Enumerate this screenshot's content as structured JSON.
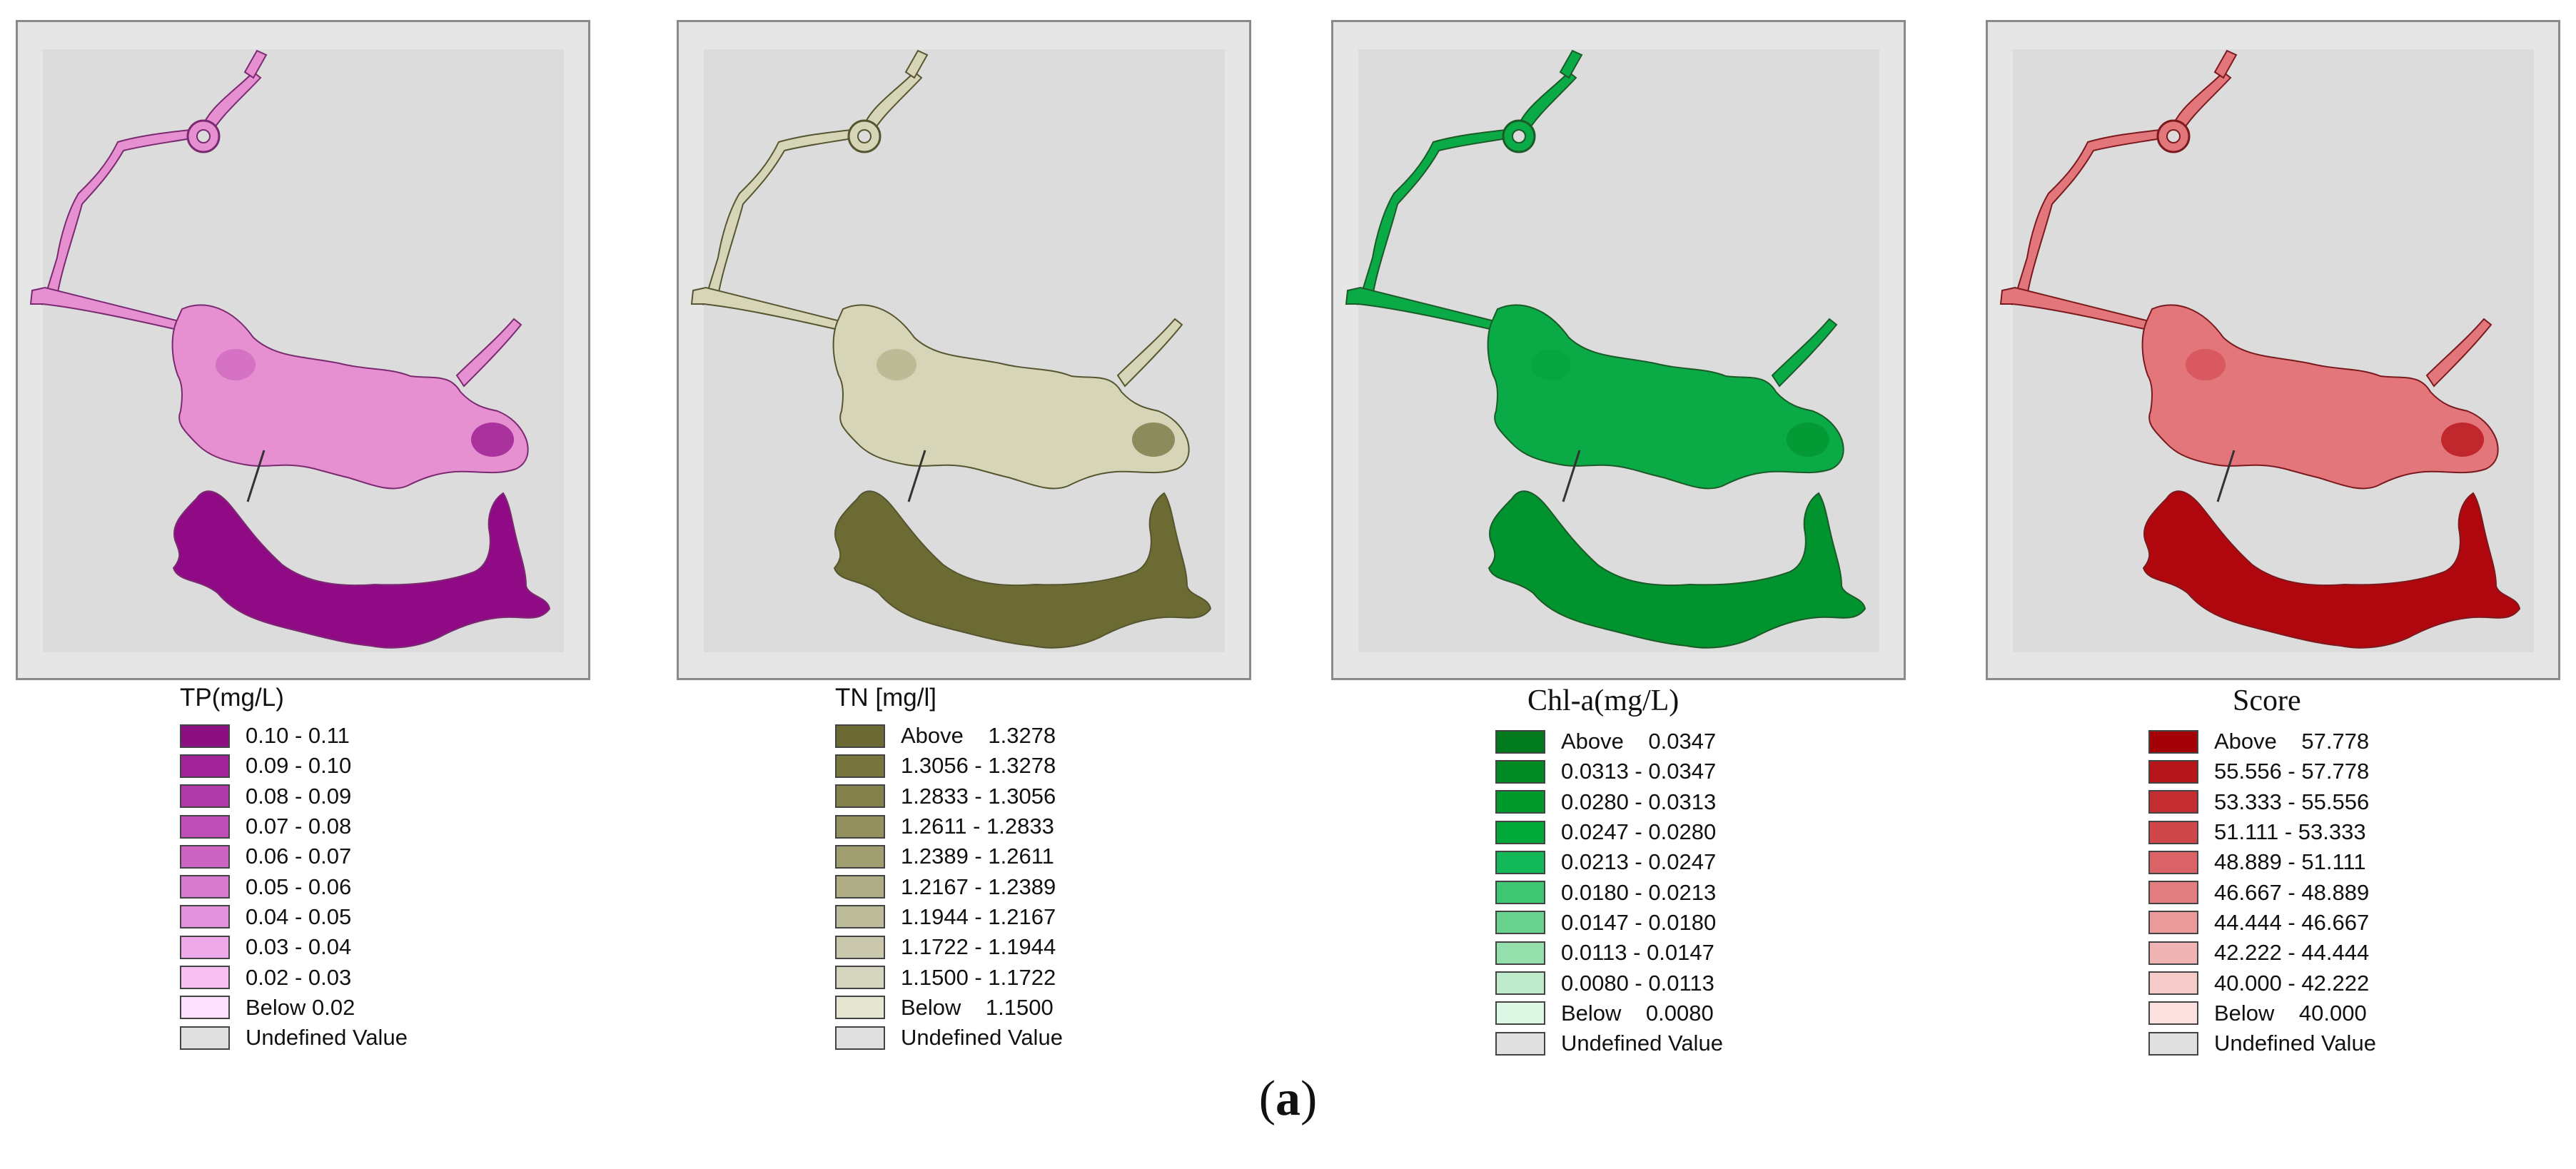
{
  "caption": {
    "open": "(",
    "letter": "a",
    "close": ")"
  },
  "undefined_color": "#e0e0e0",
  "maps": [
    {
      "title": "TP(mg/L)",
      "serif_title": false,
      "colors": {
        "base": "#e690d2",
        "high": "#900a86",
        "mid": "#c65ab8",
        "line": "#7a2a70"
      },
      "legend": [
        {
          "label": "0.10 - 0.11",
          "color": "#8b0f80"
        },
        {
          "label": "0.09 - 0.10",
          "color": "#a0239a"
        },
        {
          "label": "0.08 - 0.09",
          "color": "#b03aa8"
        },
        {
          "label": "0.07 - 0.08",
          "color": "#be4fb6"
        },
        {
          "label": "0.06 - 0.07",
          "color": "#cc65c2"
        },
        {
          "label": "0.05 - 0.06",
          "color": "#d77bcf"
        },
        {
          "label": "0.04 - 0.05",
          "color": "#e192da"
        },
        {
          "label": "0.03 - 0.04",
          "color": "#eeaae8"
        },
        {
          "label": "0.02 - 0.03",
          "color": "#f7c2f2"
        },
        {
          "label": "Below 0.02",
          "color": "#fde0fb"
        },
        {
          "label": "Undefined Value",
          "color": "#e0e0e0"
        }
      ]
    },
    {
      "title": "TN [mg/l]",
      "serif_title": false,
      "colors": {
        "base": "#d6d5b8",
        "high": "#6b6b33",
        "mid": "#a8a67a",
        "line": "#555530"
      },
      "legend": [
        {
          "label": "Above    1.3278",
          "color": "#6b6a35"
        },
        {
          "label": "1.3056 - 1.3278",
          "color": "#77763f"
        },
        {
          "label": "1.2833 - 1.3056",
          "color": "#83824d"
        },
        {
          "label": "1.2611 - 1.2833",
          "color": "#92915f"
        },
        {
          "label": "1.2389 - 1.2611",
          "color": "#a09f72"
        },
        {
          "label": "1.2167 - 1.2389",
          "color": "#aead86"
        },
        {
          "label": "1.1944 - 1.2167",
          "color": "#bcbb9a"
        },
        {
          "label": "1.1722 - 1.1944",
          "color": "#c9c8ad"
        },
        {
          "label": "1.1500 - 1.1722",
          "color": "#d6d5bf"
        },
        {
          "label": "Below    1.1500",
          "color": "#e6e5d2"
        },
        {
          "label": "Undefined Value",
          "color": "#e0e0e0"
        }
      ]
    },
    {
      "title": "Chl-a(mg/L)",
      "serif_title": true,
      "colors": {
        "base": "#0aaa46",
        "high": "#00932e",
        "mid": "#02a03a",
        "line": "#1c5a28"
      },
      "legend": [
        {
          "label": "Above    0.0347",
          "color": "#007a1c"
        },
        {
          "label": "0.0313 - 0.0347",
          "color": "#008a24"
        },
        {
          "label": "0.0280 - 0.0313",
          "color": "#00992c"
        },
        {
          "label": "0.0247 - 0.0280",
          "color": "#00a83a"
        },
        {
          "label": "0.0213 - 0.0247",
          "color": "#13b858"
        },
        {
          "label": "0.0180 - 0.0213",
          "color": "#3fc673"
        },
        {
          "label": "0.0147 - 0.0180",
          "color": "#6ad28f"
        },
        {
          "label": "0.0113 - 0.0147",
          "color": "#95dfad"
        },
        {
          "label": "0.0080 - 0.0113",
          "color": "#bdebcb"
        },
        {
          "label": "Below    0.0080",
          "color": "#ddf7e5"
        },
        {
          "label": "Undefined Value",
          "color": "#e0e0e0"
        }
      ]
    },
    {
      "title": "Score",
      "serif_title": true,
      "colors": {
        "base": "#e3767a",
        "high": "#b0070e",
        "mid": "#cf4248",
        "line": "#7a1a1e"
      },
      "legend": [
        {
          "label": "Above    57.778",
          "color": "#a30008"
        },
        {
          "label": "55.556 - 57.778",
          "color": "#b4161c"
        },
        {
          "label": "53.333 - 55.556",
          "color": "#c32d31"
        },
        {
          "label": "51.111 - 53.333",
          "color": "#cf474a"
        },
        {
          "label": "48.889 - 51.111",
          "color": "#d96366"
        },
        {
          "label": "46.667 - 48.889",
          "color": "#e27e80"
        },
        {
          "label": "44.444 - 46.667",
          "color": "#ea9a9b"
        },
        {
          "label": "42.222 - 44.444",
          "color": "#f1b4b4"
        },
        {
          "label": "40.000 - 42.222",
          "color": "#f6cccb"
        },
        {
          "label": "Below    40.000",
          "color": "#fbe2e1"
        },
        {
          "label": "Undefined Value",
          "color": "#e0e0e0"
        }
      ]
    }
  ]
}
